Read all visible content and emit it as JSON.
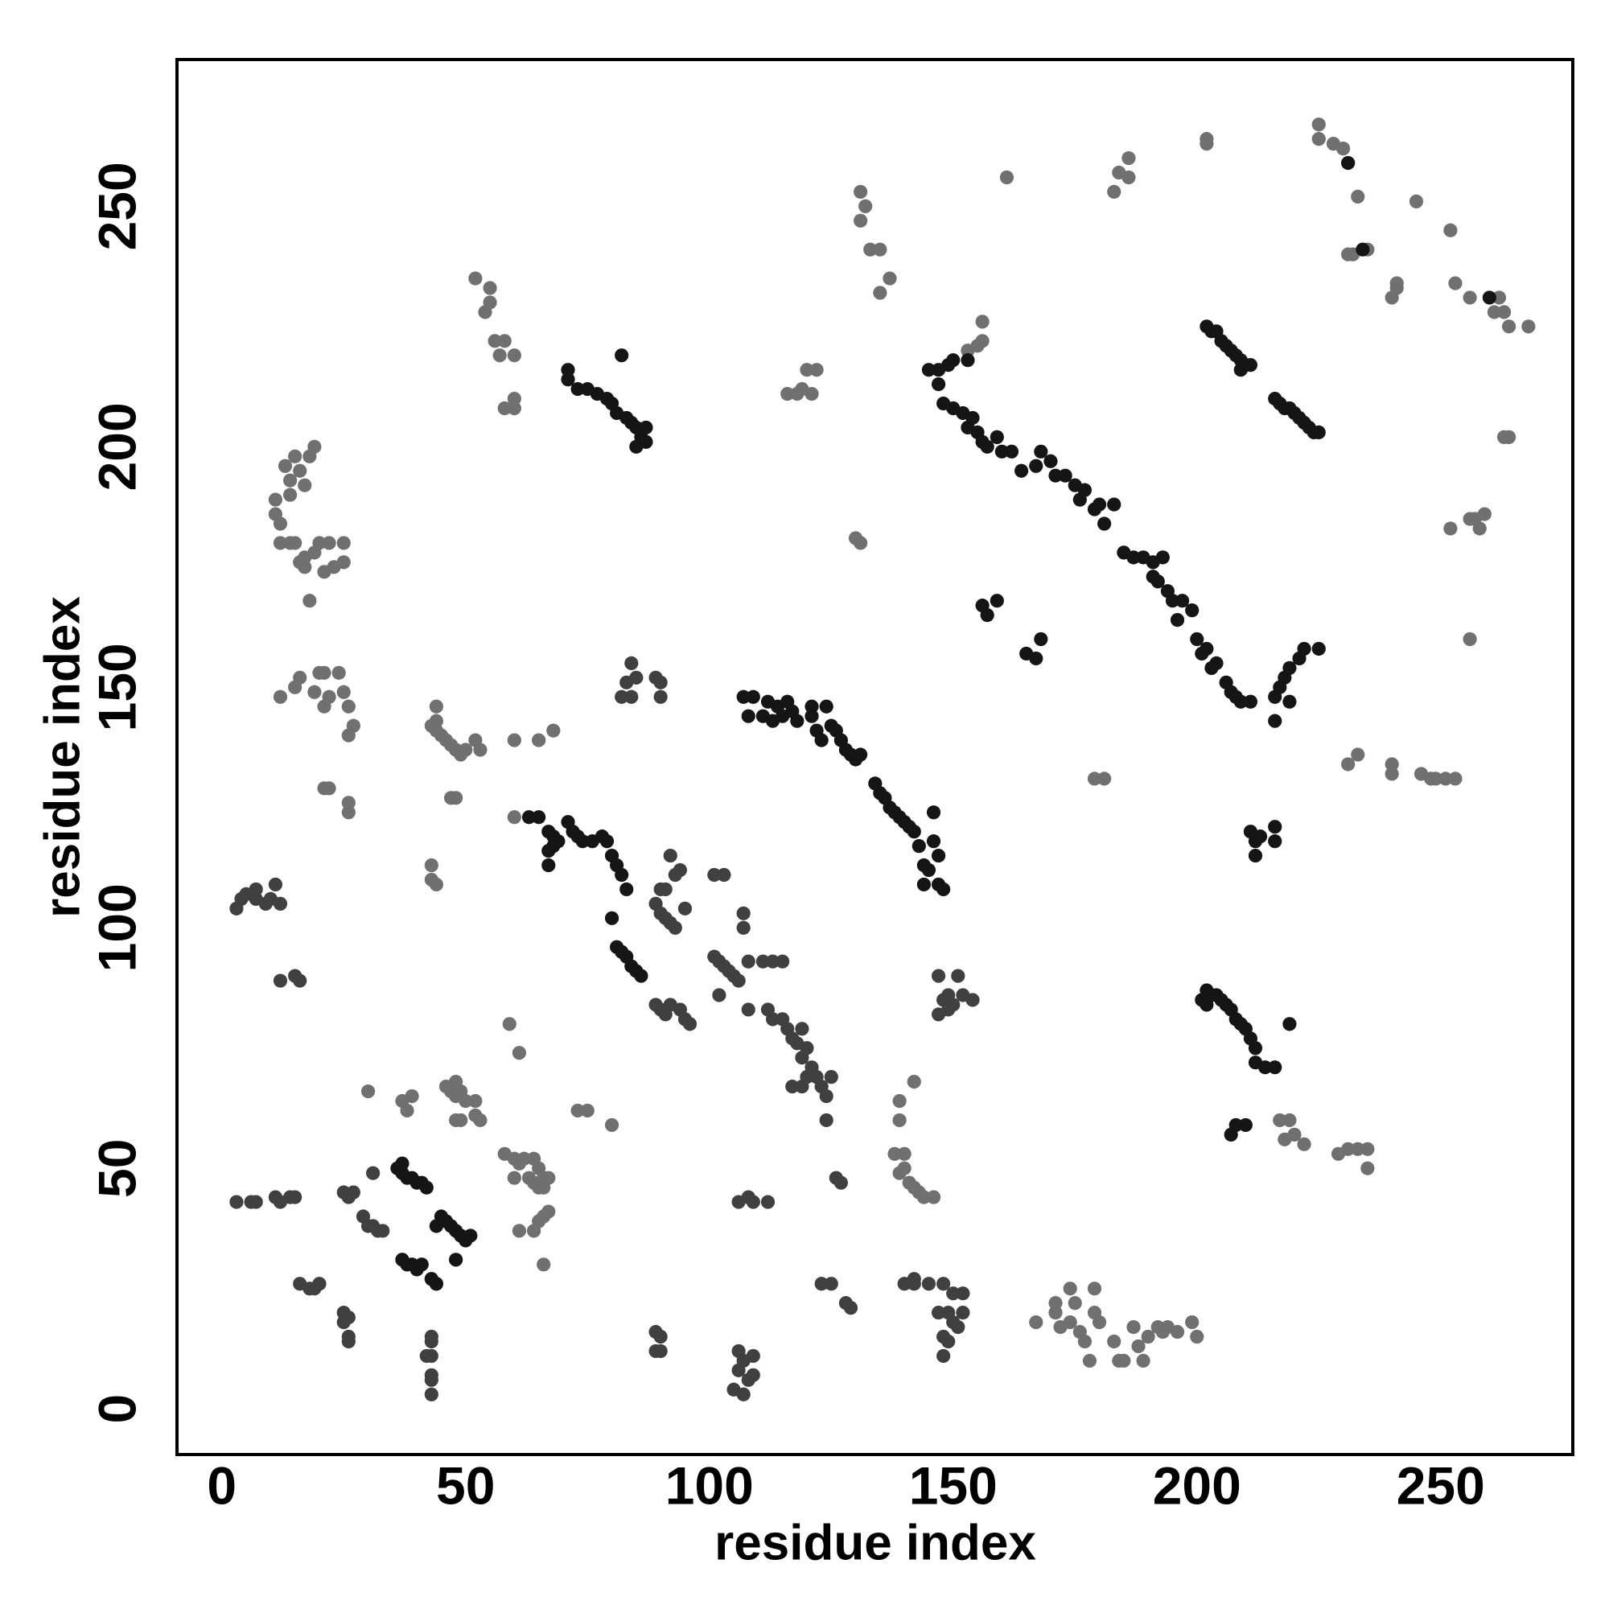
{
  "chart_data": {
    "type": "scatter",
    "xlabel": "residue index",
    "ylabel": "residue index",
    "xlim": [
      -9.2,
      277.1
    ],
    "ylim": [
      -9.5,
      280.5
    ],
    "xticks": [
      0,
      50,
      100,
      150,
      200,
      250
    ],
    "yticks": [
      0,
      50,
      100,
      150,
      200,
      250
    ],
    "grid": false,
    "series": [
      {
        "color": "#707070",
        "x": [
          225,
          225,
          228,
          230,
          231,
          233,
          202,
          202,
          184,
          183,
          186,
          186,
          161,
          245,
          252,
          231,
          232,
          235,
          241,
          241,
          240,
          253,
          256,
          261,
          262,
          263,
          264,
          268,
          263,
          264,
          256,
          257,
          258,
          259,
          252,
          256,
          131,
          132,
          131,
          133,
          135,
          135,
          137,
          130,
          131,
          116,
          118,
          120,
          119,
          121,
          122,
          155,
          156,
          156,
          153,
          52,
          55,
          55,
          54,
          56,
          58,
          57,
          60,
          58,
          60,
          60,
          11,
          11,
          12,
          14,
          14,
          13,
          16,
          17,
          18,
          15,
          19,
          12,
          14,
          16,
          17,
          19,
          21,
          22,
          23,
          25,
          25,
          18,
          15,
          20,
          17,
          12,
          15,
          16,
          19,
          20,
          21,
          22,
          21,
          24,
          25,
          26,
          26,
          27,
          21,
          22,
          26,
          26,
          43,
          44,
          45,
          46,
          47,
          48,
          49,
          50,
          52,
          53,
          44,
          44,
          60,
          65,
          68,
          60,
          48,
          47,
          43,
          43,
          44,
          30,
          37,
          38,
          39,
          46,
          47,
          48,
          48,
          49,
          50,
          52,
          52,
          53,
          48,
          49,
          58,
          60,
          61,
          62,
          63,
          64,
          65,
          65,
          66,
          67,
          66,
          60,
          61,
          64,
          65,
          66,
          67,
          66,
          64,
          59,
          61,
          73,
          75,
          80,
          139,
          140,
          141,
          142,
          143,
          144,
          146,
          138,
          140,
          139,
          139,
          142,
          167,
          171,
          171,
          172,
          174,
          175,
          174,
          176,
          177,
          178,
          179,
          179,
          180,
          183,
          184,
          185,
          187,
          188,
          189,
          190,
          192,
          193,
          194,
          196,
          199,
          200,
          217,
          219,
          218,
          220,
          222,
          229,
          231,
          233,
          235,
          235,
          179,
          181,
          231,
          233,
          240,
          240,
          246,
          248,
          249,
          251,
          253
        ],
        "values": [
          267,
          264,
          263,
          262,
          259,
          252,
          264,
          263,
          257,
          253,
          260,
          256,
          256,
          251,
          245,
          240,
          240,
          241,
          234,
          233,
          231,
          234,
          231,
          228,
          231,
          228,
          225,
          225,
          202,
          202,
          185,
          185,
          183,
          186,
          183,
          160,
          253,
          250,
          247,
          241,
          241,
          232,
          235,
          181,
          180,
          211,
          211,
          216,
          212,
          211,
          216,
          221,
          226,
          222,
          220,
          235,
          233,
          230,
          228,
          222,
          222,
          219,
          219,
          208,
          208,
          210,
          189,
          186,
          184,
          190,
          193,
          196,
          195,
          192,
          198,
          198,
          200,
          180,
          180,
          176,
          177,
          178,
          174,
          180,
          175,
          180,
          176,
          168,
          180,
          180,
          175,
          148,
          150,
          152,
          149,
          153,
          153,
          148,
          146,
          153,
          149,
          146,
          140,
          142,
          129,
          129,
          126,
          124,
          142,
          141,
          140,
          139,
          138,
          137,
          136,
          137,
          139,
          137,
          146,
          143,
          139,
          139,
          141,
          123,
          127,
          127,
          113,
          110,
          109,
          66,
          64,
          62,
          65,
          67,
          66,
          68,
          65,
          66,
          64,
          64,
          61,
          60,
          60,
          60,
          53,
          52,
          51,
          52,
          48,
          47,
          46,
          50,
          48,
          48,
          46,
          48,
          37,
          37,
          39,
          40,
          41,
          30,
          52,
          80,
          74,
          62,
          62,
          59,
          49,
          50,
          47,
          46,
          45,
          44,
          44,
          53,
          53,
          64,
          60,
          68,
          18,
          22,
          20,
          17,
          18,
          22,
          25,
          16,
          14,
          10,
          20,
          25,
          18,
          14,
          10,
          10,
          17,
          13,
          10,
          15,
          17,
          16,
          17,
          16,
          18,
          15,
          60,
          60,
          56,
          57,
          55,
          53,
          54,
          54,
          54,
          50,
          131,
          131,
          134,
          136,
          134,
          132,
          132,
          131,
          131,
          131,
          131
        ]
      },
      {
        "color": "#404040",
        "x": [
          4,
          3,
          5,
          7,
          7,
          9,
          10,
          11,
          12,
          12,
          15,
          16,
          84,
          85,
          83,
          82,
          84,
          89,
          90,
          90,
          89,
          90,
          91,
          92,
          93,
          90,
          91,
          92,
          94,
          93,
          95,
          89,
          90,
          91,
          92,
          94,
          95,
          96,
          101,
          102,
          103,
          104,
          105,
          106,
          102,
          101,
          103,
          107,
          107,
          108,
          111,
          113,
          115,
          108,
          112,
          113,
          115,
          116,
          117,
          118,
          119,
          120,
          119,
          121,
          122,
          123,
          124,
          124,
          117,
          119,
          120,
          125,
          147,
          148,
          149,
          150,
          151,
          152,
          154,
          147,
          149,
          25,
          26,
          27,
          29,
          30,
          31,
          32,
          33,
          37,
          38,
          39,
          40,
          41,
          44,
          43,
          31,
          3,
          6,
          7,
          11,
          12,
          15,
          14,
          16,
          18,
          19,
          20,
          25,
          25,
          26,
          26,
          26,
          43,
          43,
          43,
          42,
          43,
          43,
          43,
          89,
          90,
          89,
          90,
          105,
          106,
          106,
          107,
          108,
          107,
          109,
          109,
          106,
          108,
          109,
          112,
          126,
          127,
          123,
          125,
          128,
          129,
          140,
          142,
          142,
          145,
          147,
          148,
          149,
          150,
          150,
          148,
          149,
          151,
          152,
          152,
          148
        ],
        "values": [
          106,
          104,
          107,
          108,
          106,
          105,
          106,
          109,
          105,
          89,
          90,
          89,
          155,
          152,
          151,
          148,
          148,
          152,
          151,
          148,
          105,
          103,
          102,
          101,
          100,
          108,
          108,
          115,
          112,
          111,
          104,
          84,
          83,
          82,
          84,
          83,
          81,
          80,
          94,
          93,
          92,
          91,
          90,
          89,
          86,
          111,
          111,
          103,
          100,
          93,
          93,
          93,
          93,
          83,
          83,
          81,
          81,
          79,
          77,
          76,
          79,
          75,
          73,
          71,
          69,
          67,
          65,
          60,
          67,
          67,
          69,
          69,
          90,
          85,
          86,
          84,
          90,
          86,
          85,
          82,
          83,
          45,
          44,
          45,
          40,
          38,
          38,
          37,
          37,
          31,
          30,
          30,
          29,
          30,
          26,
          27,
          49,
          43,
          43,
          43,
          44,
          43,
          44,
          44,
          26,
          25,
          25,
          26,
          18,
          20,
          19,
          15,
          14,
          15,
          14,
          11,
          11,
          7,
          6,
          3,
          16,
          15,
          12,
          12,
          4,
          8,
          12,
          10,
          6,
          3,
          7,
          11,
          43,
          44,
          43,
          43,
          48,
          47,
          26,
          26,
          22,
          21,
          26,
          26,
          27,
          26,
          20,
          26,
          20,
          24,
          18,
          15,
          14,
          17,
          20,
          24,
          11
        ]
      },
      {
        "color": "#151515",
        "x": [
          231,
          234,
          260,
          202,
          203,
          204,
          205,
          206,
          207,
          208,
          209,
          210,
          209,
          211,
          216,
          217,
          218,
          219,
          220,
          221,
          222,
          223,
          224,
          225,
          145,
          147,
          149,
          150,
          153,
          147,
          148,
          150,
          152,
          153,
          154,
          155,
          156,
          157,
          159,
          160,
          162,
          164,
          167,
          168,
          170,
          171,
          173,
          175,
          176,
          177,
          179,
          180,
          181,
          183,
          185,
          187,
          189,
          191,
          191,
          192,
          193,
          194,
          195,
          196,
          197,
          199,
          200,
          201,
          202,
          203,
          204,
          206,
          207,
          208,
          209,
          211,
          216,
          216,
          217,
          218,
          219,
          221,
          222,
          225,
          219,
          156,
          157,
          159,
          165,
          167,
          168,
          71,
          71,
          73,
          75,
          77,
          79,
          80,
          82,
          81,
          83,
          84,
          85,
          86,
          87,
          85,
          87,
          107,
          109,
          108,
          111,
          112,
          113,
          114,
          115,
          116,
          117,
          118,
          121,
          121,
          122,
          123,
          124,
          125,
          126,
          127,
          128,
          129,
          130,
          131,
          134,
          135,
          136,
          137,
          138,
          139,
          140,
          141,
          142,
          143,
          144,
          145,
          146,
          146,
          147,
          147,
          148,
          144,
          63,
          65,
          67,
          68,
          69,
          71,
          72,
          73,
          74,
          76,
          78,
          79,
          80,
          81,
          82,
          83,
          80,
          81,
          82,
          83,
          84,
          85,
          86,
          67,
          67,
          68,
          202,
          203,
          204,
          205,
          206,
          207,
          208,
          209,
          210,
          211,
          212,
          212,
          214,
          216,
          201,
          202,
          219,
          207,
          208,
          210,
          212,
          211,
          212,
          216,
          216,
          213,
          36,
          37,
          37,
          38,
          39,
          40,
          41,
          42,
          45,
          46,
          47,
          48,
          49,
          50,
          51,
          48,
          44,
          37,
          38,
          39,
          40,
          41,
          44,
          43
        ],
        "values": [
          259,
          241,
          231,
          225,
          224,
          224,
          222,
          221,
          220,
          219,
          218,
          217,
          216,
          217,
          210,
          209,
          208,
          208,
          207,
          206,
          205,
          204,
          203,
          203,
          216,
          216,
          217,
          218,
          218,
          213,
          209,
          208,
          207,
          204,
          206,
          203,
          201,
          200,
          202,
          199,
          199,
          195,
          196,
          199,
          197,
          194,
          194,
          192,
          189,
          191,
          187,
          188,
          184,
          188,
          178,
          177,
          177,
          176,
          173,
          172,
          177,
          170,
          168,
          164,
          168,
          166,
          160,
          157,
          158,
          154,
          155,
          151,
          149,
          148,
          147,
          147,
          143,
          148,
          150,
          152,
          154,
          156,
          158,
          158,
          147,
          167,
          165,
          168,
          157,
          156,
          160,
          216,
          214,
          212,
          212,
          211,
          210,
          209,
          219,
          207,
          206,
          205,
          204,
          202,
          201,
          200,
          204,
          148,
          148,
          144,
          144,
          147,
          143,
          146,
          144,
          147,
          145,
          143,
          146,
          144,
          141,
          139,
          146,
          142,
          141,
          139,
          137,
          136,
          135,
          136,
          130,
          128,
          127,
          125,
          124,
          123,
          122,
          121,
          120,
          117,
          113,
          112,
          124,
          118,
          115,
          109,
          108,
          109,
          123,
          123,
          120,
          119,
          118,
          122,
          120,
          119,
          118,
          118,
          119,
          118,
          115,
          113,
          111,
          108,
          102,
          96,
          95,
          94,
          92,
          91,
          90,
          113,
          116,
          117,
          87,
          86,
          86,
          85,
          84,
          83,
          81,
          80,
          79,
          77,
          75,
          72,
          71,
          71,
          85,
          84,
          80,
          57,
          59,
          59,
          118,
          120,
          115,
          121,
          118,
          119,
          50,
          51,
          49,
          48,
          48,
          47,
          47,
          46,
          40,
          39,
          38,
          37,
          36,
          35,
          36,
          31,
          38,
          31,
          30,
          30,
          29,
          30,
          26,
          27
        ]
      }
    ]
  }
}
